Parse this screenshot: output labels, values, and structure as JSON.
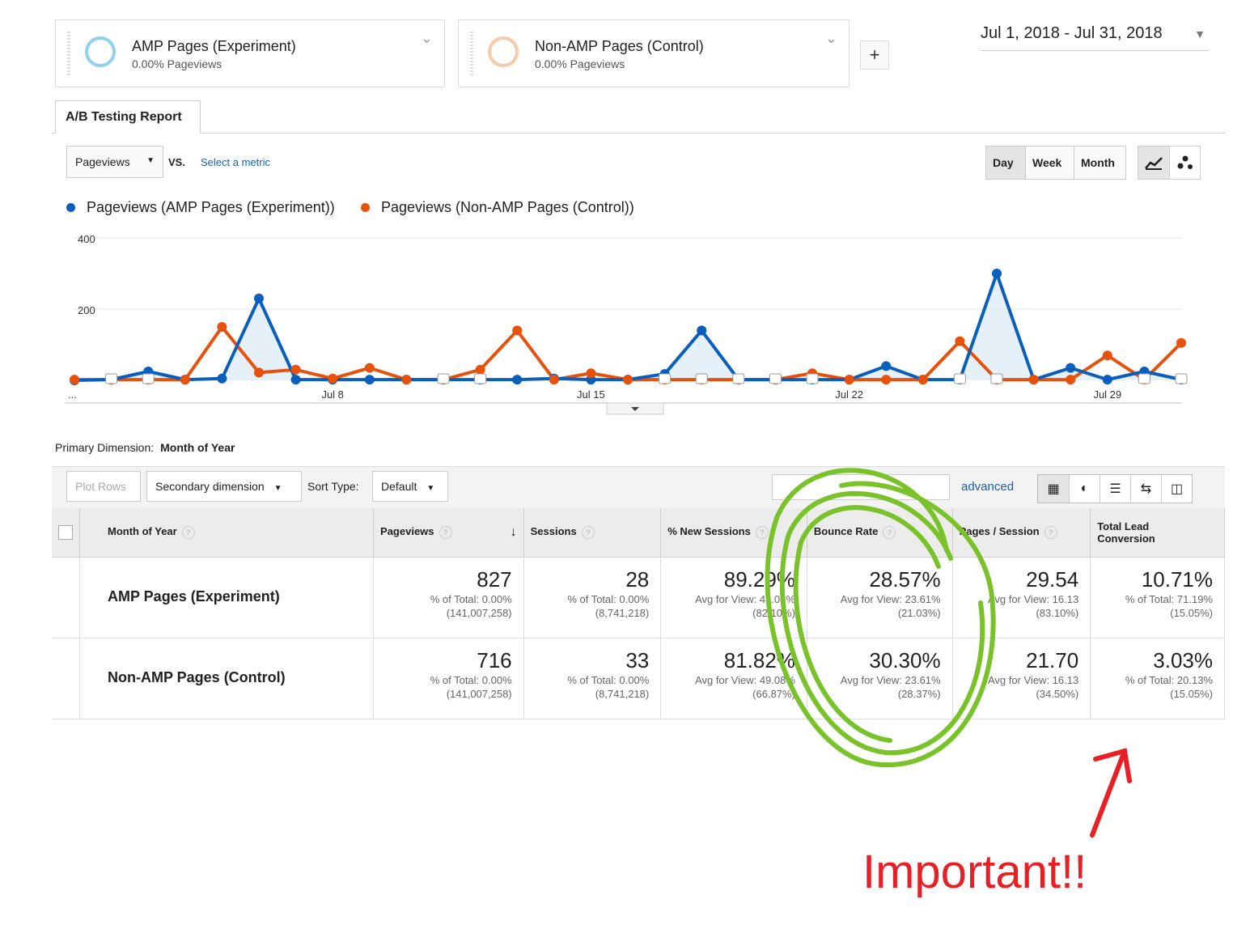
{
  "segments": [
    {
      "title": "AMP Pages (Experiment)",
      "subtitle": "0.00% Pageviews",
      "color": "#8fd0f0"
    },
    {
      "title": "Non-AMP Pages (Control)",
      "subtitle": "0.00% Pageviews",
      "color": "#f7c9a6"
    }
  ],
  "add_segment": "+",
  "date_range": "Jul 1, 2018 - Jul 31, 2018",
  "report_tab": "A/B Testing Report",
  "chart_controls": {
    "metric": "Pageviews",
    "vs": "VS.",
    "select_metric": "Select a metric",
    "granularity": [
      "Day",
      "Week",
      "Month"
    ],
    "active_granularity": "Day"
  },
  "legend": [
    {
      "label": "Pageviews (AMP Pages (Experiment))",
      "color": "#0a5ebd"
    },
    {
      "label": "Pageviews (Non-AMP Pages (Control))",
      "color": "#e8510c"
    }
  ],
  "chart_data": {
    "type": "line",
    "x": [
      1,
      2,
      3,
      4,
      5,
      6,
      7,
      8,
      9,
      10,
      11,
      12,
      13,
      14,
      15,
      16,
      17,
      18,
      19,
      20,
      21,
      22,
      23,
      24,
      25,
      26,
      27,
      28,
      29,
      30,
      31
    ],
    "x_tick_labels": [
      "...",
      "Jul 8",
      "Jul 15",
      "Jul 22",
      "Jul 29"
    ],
    "y_tick_labels": [
      "400",
      "200"
    ],
    "ylim": [
      0,
      400
    ],
    "series": [
      {
        "name": "Pageviews (AMP Pages (Experiment))",
        "color": "#0a5ebd",
        "values": [
          0,
          2,
          25,
          2,
          5,
          230,
          2,
          2,
          2,
          2,
          2,
          2,
          2,
          5,
          2,
          2,
          18,
          140,
          2,
          2,
          2,
          2,
          40,
          2,
          2,
          300,
          2,
          35,
          2,
          25,
          2
        ]
      },
      {
        "name": "Pageviews (Non-AMP Pages (Control))",
        "color": "#e8510c",
        "values": [
          2,
          2,
          2,
          2,
          150,
          22,
          30,
          5,
          35,
          2,
          2,
          30,
          140,
          2,
          20,
          2,
          2,
          2,
          2,
          2,
          20,
          2,
          2,
          2,
          110,
          2,
          2,
          2,
          70,
          2,
          105
        ]
      }
    ]
  },
  "primary_dimension": {
    "label": "Primary Dimension:",
    "value": "Month of Year"
  },
  "toolbar": {
    "plot_rows": "Plot Rows",
    "secondary_dimension": "Secondary dimension",
    "sort_type_label": "Sort Type:",
    "sort_type": "Default",
    "advanced": "advanced"
  },
  "table": {
    "headers": [
      "Month of Year",
      "Pageviews",
      "Sessions",
      "% New Sessions",
      "Bounce Rate",
      "Pages / Session",
      "Total Lead Conversion"
    ],
    "rows": [
      {
        "label": "AMP Pages (Experiment)",
        "cells": [
          {
            "main": "827",
            "l1": "% of Total: 0.00%",
            "l2": "(141,007,258)"
          },
          {
            "main": "28",
            "l1": "% of Total: 0.00%",
            "l2": "(8,741,218)"
          },
          {
            "main": "89.29%",
            "l1": "Avg for View: 49.08%",
            "l2": "(82.10%)"
          },
          {
            "main": "28.57%",
            "l1": "Avg for View: 23.61%",
            "l2": "(21.03%)"
          },
          {
            "main": "29.54",
            "l1": "Avg for View: 16.13",
            "l2": "(83.10%)"
          },
          {
            "main": "10.71%",
            "l1": "% of Total: 71.19%",
            "l2": "(15.05%)"
          }
        ]
      },
      {
        "label": "Non-AMP Pages (Control)",
        "cells": [
          {
            "main": "716",
            "l1": "% of Total: 0.00%",
            "l2": "(141,007,258)"
          },
          {
            "main": "33",
            "l1": "% of Total: 0.00%",
            "l2": "(8,741,218)"
          },
          {
            "main": "81.82%",
            "l1": "Avg for View: 49.08%",
            "l2": "(66.87%)"
          },
          {
            "main": "30.30%",
            "l1": "Avg for View: 23.61%",
            "l2": "(28.37%)"
          },
          {
            "main": "21.70",
            "l1": "Avg for View: 16.13",
            "l2": "(34.50%)"
          },
          {
            "main": "3.03%",
            "l1": "% of Total: 20.13%",
            "l2": "(15.05%)"
          }
        ]
      }
    ]
  },
  "annotation": {
    "text": "Important!!",
    "circle_color": "#7ac22a",
    "arrow_color": "#e81f24"
  }
}
